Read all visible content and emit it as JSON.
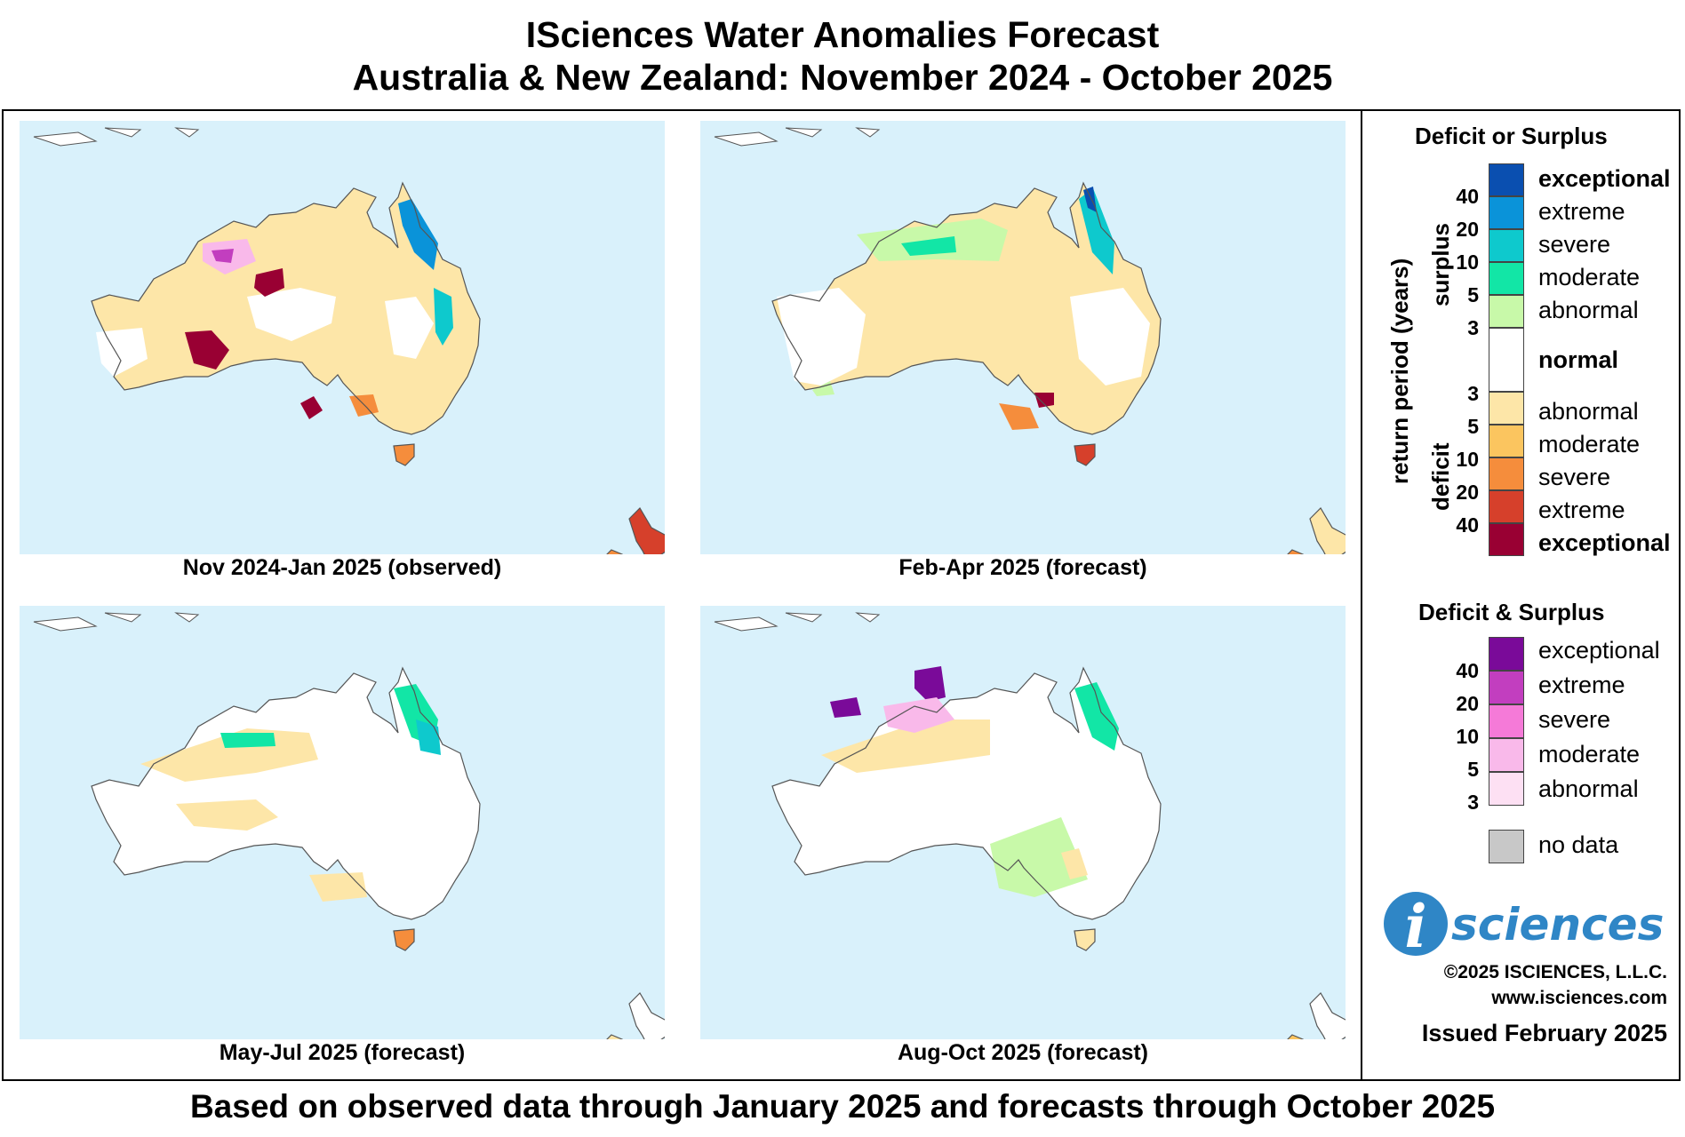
{
  "header": {
    "title_line1": "ISciences Water Anomalies Forecast",
    "title_line2": "Australia & New Zealand: November 2024 - October 2025"
  },
  "panels": [
    {
      "caption": "Nov 2024-Jan 2025 (observed)"
    },
    {
      "caption": "Feb-Apr 2025 (forecast)"
    },
    {
      "caption": "May-Jul 2025 (forecast)"
    },
    {
      "caption": "Aug-Oct 2025 (forecast)"
    }
  ],
  "legend": {
    "deficit_surplus_title": "Deficit or Surplus",
    "axis_label": "return period (years)",
    "surplus_label": "surplus",
    "deficit_label": "deficit",
    "surplus_levels": [
      {
        "label": "exceptional",
        "color": "#0a4fb0"
      },
      {
        "label": "extreme",
        "color": "#0a93d9"
      },
      {
        "label": "severe",
        "color": "#0ec9cd"
      },
      {
        "label": "moderate",
        "color": "#12e6a6"
      },
      {
        "label": "abnormal",
        "color": "#c8f9a9"
      }
    ],
    "normal": {
      "label": "normal",
      "color": "#ffffff"
    },
    "deficit_levels": [
      {
        "label": "abnormal",
        "color": "#fde6a8"
      },
      {
        "label": "moderate",
        "color": "#fbc55f"
      },
      {
        "label": "severe",
        "color": "#f58d3c"
      },
      {
        "label": "extreme",
        "color": "#d6402b"
      },
      {
        "label": "exceptional",
        "color": "#990033"
      }
    ],
    "surplus_ticks": [
      "40",
      "20",
      "10",
      "5",
      "3"
    ],
    "deficit_ticks": [
      "3",
      "5",
      "10",
      "20",
      "40"
    ],
    "combined_title": "Deficit & Surplus",
    "combined_levels": [
      {
        "label": "exceptional",
        "color": "#7a0a99"
      },
      {
        "label": "extreme",
        "color": "#c23ebf"
      },
      {
        "label": "severe",
        "color": "#f57ad8"
      },
      {
        "label": "moderate",
        "color": "#f9b9ea"
      },
      {
        "label": "abnormal",
        "color": "#fde0f3"
      }
    ],
    "combined_ticks": [
      "40",
      "20",
      "10",
      "5",
      "3"
    ],
    "nodata": {
      "label": "no data",
      "color": "#c8c8c8"
    }
  },
  "branding": {
    "logo_i": "i",
    "logo_text": "sciences",
    "copyright": "©2025 ISCIENCES, L.L.C.",
    "website": "www.isciences.com",
    "issued": "Issued February 2025"
  },
  "footer": "Based on observed data through January 2025 and forecasts through October 2025"
}
